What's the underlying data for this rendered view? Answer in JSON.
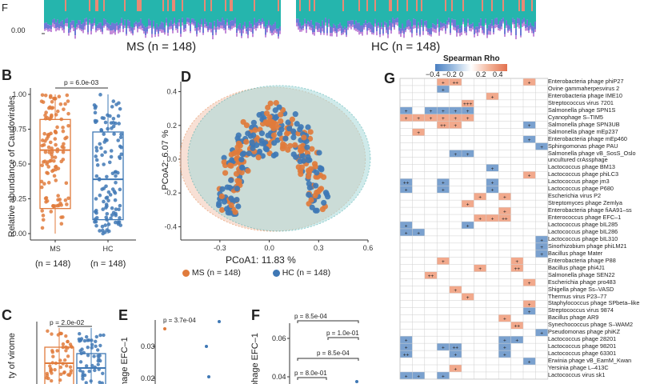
{
  "colors": {
    "ms": "#e07b3c",
    "hc": "#3f78b5",
    "neg": "#7aa1cf",
    "pos": "#f2a98c",
    "ellipse_ms": "#f3c8b4",
    "ellipse_hc": "#a8dada"
  },
  "panel_A": {
    "ytick_top": "0.00",
    "ylabel_fragment": "F",
    "groups": [
      "MS (n = 148)",
      "HC (n = 148)"
    ]
  },
  "panel_B": {
    "label": "B",
    "pvalue": "p = 6.0e-03",
    "ylabel": "Relative abundance of Caudovirales",
    "yticks": [
      "1.00",
      "0.75",
      "0.50",
      "0.25",
      "0.00"
    ],
    "xticks": [
      "MS",
      "HC"
    ],
    "counts": [
      "(n = 148)",
      "(n = 148)"
    ]
  },
  "panel_C": {
    "label": "C",
    "pvalue": "p = 2.0e-02",
    "ylabel_fragment": "ty of virome"
  },
  "panel_D": {
    "label": "D",
    "xlabel": "PCoA1:  11.83 %",
    "ylabel": "PCoA2:  6.07 %",
    "xticks": [
      "-0.3",
      "0.0",
      "0.3",
      "0.6"
    ],
    "yticks": [
      "0.4",
      "0.2",
      "0.0",
      "-0.2",
      "-0.4"
    ],
    "legend": [
      "MS (n = 148)",
      "HC (n = 148)"
    ]
  },
  "panel_E": {
    "label": "E",
    "pvalue": "p = 3.7e-04",
    "ylabel_fragment": "hage EFC–1",
    "yticks": [
      "0.03",
      "0.02"
    ]
  },
  "panel_F": {
    "label": "F",
    "ylabel_fragment": "phage EFC–1",
    "yticks": [
      "0.06",
      "0.04"
    ],
    "pvalues": [
      "p = 8.5e-04",
      "p = 1.0e-01",
      "p = 8.5e-04",
      "p = 8.0e-01"
    ]
  },
  "panel_G": {
    "label": "G",
    "legend_title": "Spearman Rho",
    "legend_ticks": [
      "−0.4",
      "−0.2",
      "0",
      "0.2",
      "0.4"
    ],
    "rows": [
      "Enterobacteria phage phiP27",
      "Ovine gammaherpesvirus 2",
      "Enterobacteria phage IME10",
      "Streptococcus virus 7201",
      "Salmonella phage SPN1S",
      "Cyanophage S–TIM5",
      "Salmonella phage SPN3UB",
      "Salmonella phage mEp237",
      "Enterobacteria phage mEp460",
      "Sphingomonas phage PAU",
      "Salmonella phage vB_SosS_Oslo",
      "uncultured crAssphage",
      "Lactococcus phage BM13",
      "Lactococcus phage phiLC3",
      "Lactococcus phage jm3",
      "Lactococcus phage P680",
      "Escherichia virus P2",
      "Streptomyces phage Zemlya",
      "Enterobacteria phage fiAA91–ss",
      "Enterococcus phage EFC–1",
      "Lactococcus phage bIL285",
      "Lactococcus phage bIL286",
      "Lactococcus phage bIL310",
      "Sinorhizobium phage phiLM21",
      "Bacillus phage Mater",
      "Enterobacteria phage P88",
      "Bacillus phage phi4J1",
      "Salmonella phage SEN22",
      "Escherichia phage pro483",
      "Shigella phage Ss–VASD",
      "Thermus virus P23–77",
      "Staphylococcus phage SPbeta–like",
      "Streptococcus virus 9874",
      "Bacillus phage AR9",
      "Synechococcus phage S–WAM2",
      "Pseudomonas phage phiKZ",
      "Lactococcus phage 28201",
      "Lactococcus phage 98201",
      "Lactococcus phage 63301",
      "Erwinia phage vB_EamM_Kwan",
      "Yersinia phage L–413C",
      "Lactococcus virus sk1"
    ],
    "cells": [
      [
        0,
        3,
        "pos",
        "+"
      ],
      [
        0,
        4,
        "pos",
        "++"
      ],
      [
        0,
        10,
        "pos",
        "+"
      ],
      [
        1,
        3,
        "neg",
        "+"
      ],
      [
        2,
        7,
        "pos",
        "+"
      ],
      [
        3,
        5,
        "pos",
        "+++"
      ],
      [
        4,
        0,
        "neg",
        "+"
      ],
      [
        4,
        2,
        "neg",
        "+"
      ],
      [
        4,
        3,
        "neg",
        "+"
      ],
      [
        4,
        4,
        "neg",
        "+"
      ],
      [
        4,
        5,
        "neg",
        "+"
      ],
      [
        5,
        0,
        "pos",
        "+"
      ],
      [
        5,
        1,
        "pos",
        "+"
      ],
      [
        5,
        2,
        "pos",
        "+"
      ],
      [
        5,
        3,
        "pos",
        "+"
      ],
      [
        5,
        4,
        "pos",
        "+"
      ],
      [
        5,
        5,
        "pos",
        "+"
      ],
      [
        6,
        3,
        "pos",
        "++"
      ],
      [
        6,
        4,
        "pos",
        "+"
      ],
      [
        6,
        10,
        "neg",
        "+"
      ],
      [
        7,
        1,
        "pos",
        "+"
      ],
      [
        8,
        10,
        "neg",
        "+"
      ],
      [
        9,
        11,
        "neg",
        "+"
      ],
      [
        10,
        4,
        "neg",
        "+"
      ],
      [
        10,
        5,
        "neg",
        "+"
      ],
      [
        12,
        7,
        "neg",
        "+"
      ],
      [
        13,
        10,
        "pos",
        "+"
      ],
      [
        14,
        0,
        "neg",
        "++"
      ],
      [
        14,
        3,
        "neg",
        "+"
      ],
      [
        14,
        7,
        "neg",
        "+"
      ],
      [
        15,
        0,
        "neg",
        "+"
      ],
      [
        15,
        3,
        "neg",
        "+"
      ],
      [
        15,
        7,
        "neg",
        "+"
      ],
      [
        16,
        6,
        "pos",
        "+"
      ],
      [
        16,
        8,
        "pos",
        "+"
      ],
      [
        17,
        5,
        "pos",
        "+"
      ],
      [
        18,
        8,
        "pos",
        "+"
      ],
      [
        19,
        6,
        "pos",
        "+"
      ],
      [
        19,
        7,
        "pos",
        "+"
      ],
      [
        19,
        8,
        "pos",
        "++"
      ],
      [
        20,
        0,
        "neg",
        "+"
      ],
      [
        20,
        5,
        "neg",
        "+"
      ],
      [
        21,
        0,
        "neg",
        "+"
      ],
      [
        21,
        1,
        "neg",
        "+"
      ],
      [
        22,
        11,
        "neg",
        "+"
      ],
      [
        23,
        11,
        "neg",
        "+"
      ],
      [
        24,
        11,
        "neg",
        "+"
      ],
      [
        25,
        3,
        "pos",
        "+"
      ],
      [
        25,
        9,
        "pos",
        "+"
      ],
      [
        26,
        6,
        "pos",
        "+"
      ],
      [
        26,
        9,
        "pos",
        "++"
      ],
      [
        27,
        2,
        "pos",
        "++"
      ],
      [
        28,
        10,
        "pos",
        "+"
      ],
      [
        29,
        4,
        "pos",
        "+"
      ],
      [
        30,
        5,
        "pos",
        "+"
      ],
      [
        31,
        10,
        "pos",
        "+"
      ],
      [
        32,
        10,
        "neg",
        "+"
      ],
      [
        33,
        8,
        "pos",
        "+"
      ],
      [
        34,
        9,
        "pos",
        "++"
      ],
      [
        35,
        11,
        "neg",
        "+"
      ],
      [
        36,
        0,
        "neg",
        "+"
      ],
      [
        36,
        8,
        "neg",
        "+"
      ],
      [
        36,
        9,
        "neg",
        "+"
      ],
      [
        37,
        0,
        "neg",
        "+"
      ],
      [
        37,
        3,
        "neg",
        "+"
      ],
      [
        37,
        4,
        "neg",
        "++"
      ],
      [
        37,
        8,
        "neg",
        "+"
      ],
      [
        38,
        0,
        "neg",
        "++"
      ],
      [
        38,
        4,
        "neg",
        "+"
      ],
      [
        38,
        8,
        "neg",
        "+"
      ],
      [
        39,
        10,
        "neg",
        "+"
      ],
      [
        40,
        4,
        "pos",
        "+"
      ],
      [
        41,
        0,
        "neg",
        "+"
      ],
      [
        41,
        1,
        "neg",
        "+"
      ],
      [
        41,
        3,
        "neg",
        "+"
      ]
    ]
  }
}
